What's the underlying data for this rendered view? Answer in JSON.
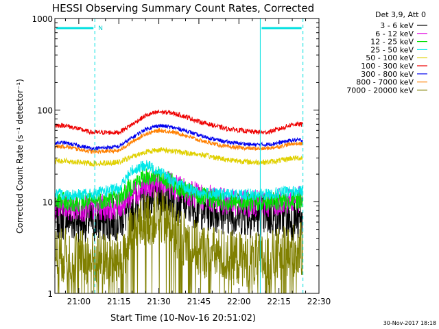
{
  "title": "HESSI Observing Summary Count Rates, Corrected",
  "timestamp": "30-Nov-2017 18:18",
  "chart_data": {
    "type": "line",
    "title": "HESSI Observing Summary Count Rates, Corrected",
    "xlabel": "Start Time (10-Nov-16 20:51:02)",
    "ylabel": "Corrected Count Rate (s⁻¹ detector⁻¹)",
    "y_scale": "log",
    "ylim": [
      1,
      1000
    ],
    "xlim": [
      "20:51:02",
      "22:30:00"
    ],
    "x_ticks": [
      "21:00",
      "21:15",
      "21:30",
      "21:45",
      "22:00",
      "22:15",
      "22:30"
    ],
    "y_ticks": [
      "1",
      "10",
      "100",
      "1000"
    ],
    "legend_title": "Det 3,9, Att 0",
    "legend_position": "right, outside plot",
    "night_marker": "N",
    "annotation_lines_solid": [
      "20:51:02",
      "22:08"
    ],
    "annotation_lines_dashed": [
      "21:06",
      "22:24"
    ],
    "annotation_segments_top": [
      {
        "start": "20:51:02",
        "end": "21:06"
      },
      {
        "start": "22:08",
        "end": "22:24"
      }
    ],
    "x": [
      "20:55",
      "21:05",
      "21:15",
      "21:20",
      "21:25",
      "21:30",
      "21:35",
      "21:40",
      "21:45",
      "21:55",
      "22:05",
      "22:10",
      "22:15",
      "22:20",
      "22:24"
    ],
    "series": [
      {
        "name": "3 - 6 keV",
        "color": "#000000",
        "values": [
          6.5,
          6.0,
          6.5,
          8,
          11,
          12,
          11,
          9.5,
          8.5,
          7.5,
          7,
          7,
          7,
          6.5,
          6
        ]
      },
      {
        "name": "6 - 12 keV",
        "color": "#e000e0",
        "values": [
          8.5,
          8.5,
          9,
          12,
          15,
          16,
          15,
          13,
          11.5,
          10,
          9.5,
          9.5,
          10,
          10.5,
          10.5
        ]
      },
      {
        "name": "12 - 25 keV",
        "color": "#00e000",
        "values": [
          10,
          10,
          11,
          15,
          19,
          19,
          16,
          13,
          11.5,
          10,
          10,
          10,
          10,
          10.5,
          10.5
        ]
      },
      {
        "name": "25 - 50 keV",
        "color": "#00e8e8",
        "values": [
          12,
          12,
          14,
          22,
          25,
          22,
          17,
          14,
          12.5,
          12,
          12,
          12,
          12.5,
          13,
          13
        ]
      },
      {
        "name": "50 - 100 keV",
        "color": "#e0d000",
        "values": [
          28,
          26,
          27,
          31,
          35,
          37,
          36,
          34,
          33,
          29,
          27,
          27,
          28,
          30,
          30
        ]
      },
      {
        "name": "100 - 300 keV",
        "color": "#ee0000",
        "values": [
          68,
          57,
          57,
          70,
          87,
          96,
          93,
          85,
          75,
          63,
          58,
          57,
          62,
          70,
          70
        ]
      },
      {
        "name": "300 - 800 keV",
        "color": "#0000ee",
        "values": [
          44,
          38,
          40,
          50,
          62,
          68,
          65,
          60,
          53,
          45,
          42,
          42,
          44,
          47,
          47
        ]
      },
      {
        "name": "800 - 7000 keV",
        "color": "#ff8000",
        "values": [
          40,
          35,
          36,
          45,
          55,
          60,
          58,
          53,
          47,
          40,
          38,
          38,
          40,
          43,
          43
        ]
      },
      {
        "name": "7000 - 20000 keV",
        "color": "#808000",
        "values": [
          2.6,
          2.4,
          2.3,
          4.5,
          6.5,
          7,
          5.5,
          3.8,
          3.0,
          2.5,
          2.3,
          2.3,
          2.6,
          3.0,
          3.0
        ]
      }
    ]
  }
}
